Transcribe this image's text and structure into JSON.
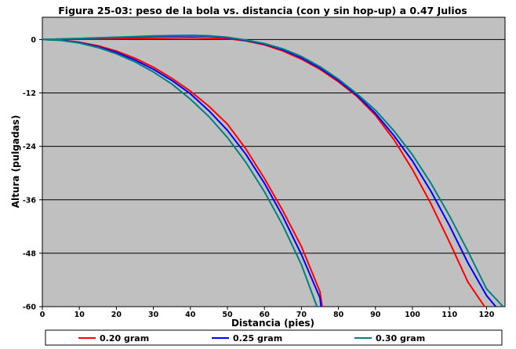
{
  "chart_data": {
    "type": "line",
    "title": "Figura 25-03: peso de la bola vs. distancia (con y sin hop-up) a 0.47 Julios",
    "xlabel": "Distancia (pies)",
    "ylabel": "Altura (pulgadas)",
    "xlim": [
      0,
      125
    ],
    "ylim": [
      -60,
      5
    ],
    "x_ticks": [
      0,
      10,
      20,
      30,
      40,
      50,
      60,
      70,
      80,
      90,
      100,
      110,
      120
    ],
    "y_ticks": [
      0,
      -12,
      -24,
      -36,
      -48,
      -60
    ],
    "x_tick_labels": [
      "0",
      "10",
      "20",
      "30",
      "40",
      "50",
      "60",
      "70",
      "80",
      "90",
      "100",
      "110",
      "120"
    ],
    "y_tick_labels": [
      "0",
      "-12",
      "-24",
      "-36",
      "-48",
      "-60"
    ],
    "grid": "horizontal",
    "legend": "bottom",
    "colors": {
      "plot_bg": "#c0c0c0",
      "gridline": "#000000"
    },
    "series": [
      {
        "name": "0.20 gram",
        "color": "#ff0000",
        "curves": [
          {
            "x": [
              0,
              5,
              10,
              15,
              20,
              25,
              30,
              35,
              40,
              45,
              50,
              55,
              60,
              65,
              70,
              75,
              75.6
            ],
            "y": [
              0,
              -0.1,
              -0.6,
              -1.4,
              -2.6,
              -4.2,
              -6.2,
              -8.7,
              -11.6,
              -15.0,
              -19.0,
              -24.6,
              -31.2,
              -38.5,
              -46.5,
              -56.6,
              -60
            ]
          },
          {
            "x": [
              0,
              10,
              20,
              30,
              40,
              50,
              55,
              60,
              65,
              70,
              75,
              80,
              85,
              90,
              95,
              100,
              105,
              110,
              115,
              119.5
            ],
            "y": [
              0,
              0.1,
              0.2,
              0.3,
              0.4,
              0.2,
              -0.3,
              -1.2,
              -2.6,
              -4.4,
              -6.7,
              -9.5,
              -12.8,
              -17.0,
              -22.5,
              -29.2,
              -36.9,
              -45.5,
              -54.5,
              -60
            ]
          }
        ]
      },
      {
        "name": "0.25 gram",
        "color": "#0000ff",
        "curves": [
          {
            "x": [
              0,
              5,
              10,
              15,
              20,
              25,
              30,
              35,
              40,
              45,
              50,
              55,
              60,
              65,
              70,
              75,
              75.3
            ],
            "y": [
              0,
              -0.15,
              -0.7,
              -1.6,
              -2.9,
              -4.6,
              -6.7,
              -9.2,
              -12.2,
              -16.0,
              -20.4,
              -25.8,
              -32.3,
              -39.8,
              -48.3,
              -58.0,
              -60
            ]
          },
          {
            "x": [
              0,
              10,
              20,
              30,
              40,
              45,
              50,
              55,
              60,
              65,
              70,
              75,
              80,
              85,
              90,
              95,
              100,
              105,
              110,
              115,
              120,
              122.5
            ],
            "y": [
              0,
              0.2,
              0.45,
              0.7,
              0.85,
              0.75,
              0.4,
              -0.2,
              -1.0,
              -2.3,
              -4.1,
              -6.4,
              -9.2,
              -12.5,
              -16.6,
              -21.6,
              -27.3,
              -34.1,
              -41.8,
              -50.2,
              -57.5,
              -60
            ]
          }
        ]
      },
      {
        "name": "0.30 gram",
        "color": "#008080",
        "curves": [
          {
            "x": [
              0,
              5,
              10,
              15,
              20,
              25,
              30,
              35,
              40,
              45,
              50,
              55,
              60,
              65,
              70,
              74.2
            ],
            "y": [
              0,
              -0.2,
              -0.8,
              -1.8,
              -3.2,
              -5.0,
              -7.3,
              -10.0,
              -13.4,
              -17.3,
              -22.0,
              -27.6,
              -34.2,
              -41.8,
              -50.6,
              -60
            ]
          },
          {
            "x": [
              0,
              10,
              20,
              30,
              40,
              45,
              50,
              55,
              60,
              65,
              70,
              75,
              80,
              85,
              90,
              95,
              100,
              105,
              110,
              115,
              120,
              124.5
            ],
            "y": [
              0,
              0.25,
              0.5,
              0.8,
              0.95,
              0.85,
              0.5,
              -0.1,
              -0.9,
              -2.1,
              -3.8,
              -6.1,
              -8.9,
              -12.2,
              -15.9,
              -20.5,
              -25.9,
              -32.3,
              -39.6,
              -47.6,
              -56.0,
              -60
            ]
          }
        ]
      }
    ]
  }
}
